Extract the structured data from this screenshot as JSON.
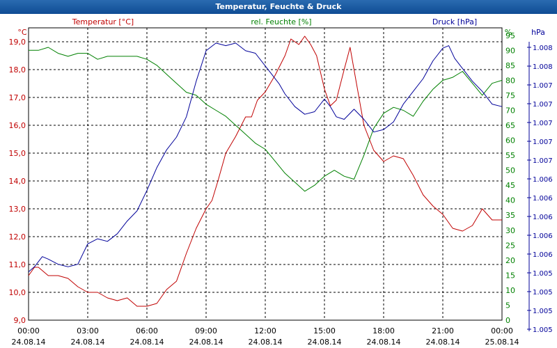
{
  "window": {
    "title": "Temperatur, Feuchte & Druck"
  },
  "colors": {
    "temperature": "#c00000",
    "humidity": "#008000",
    "pressure": "#000099",
    "grid": "#000000",
    "background": "#ffffff"
  },
  "chart_data": {
    "type": "line",
    "title": "Temperatur, Feuchte & Druck",
    "grid": true,
    "x_ticks": [
      {
        "time": "00:00",
        "date": "24.08.14"
      },
      {
        "time": "03:00",
        "date": "24.08.14"
      },
      {
        "time": "06:00",
        "date": "24.08.14"
      },
      {
        "time": "09:00",
        "date": "24.08.14"
      },
      {
        "time": "12:00",
        "date": "24.08.14"
      },
      {
        "time": "15:00",
        "date": "24.08.14"
      },
      {
        "time": "18:00",
        "date": "24.08.14"
      },
      {
        "time": "21:00",
        "date": "24.08.14"
      },
      {
        "time": "00:00",
        "date": "25.08.14"
      }
    ],
    "axes": {
      "temperature": {
        "label": "Temperatur [°C]",
        "unit": "°C",
        "range": [
          9,
          19.5
        ],
        "ticks": [
          "9,0",
          "10,0",
          "11,0",
          "12,0",
          "13,0",
          "14,0",
          "15,0",
          "16,0",
          "17,0",
          "18,0",
          "19,0"
        ]
      },
      "humidity": {
        "label": "rel. Feuchte [%]",
        "unit": "%",
        "range": [
          0,
          97.5
        ],
        "ticks": [
          "0",
          "5",
          "10",
          "15",
          "20",
          "25",
          "30",
          "35",
          "40",
          "45",
          "50",
          "55",
          "60",
          "65",
          "70",
          "75",
          "80",
          "85",
          "90",
          "95"
        ]
      },
      "pressure": {
        "label": "Druck [hPa]",
        "unit": "hPa",
        "ticks": [
          "1.005",
          "1.005",
          "1.005",
          "1.005",
          "1.006",
          "1.006",
          "1.006",
          "1.006",
          "1.006",
          "1.007",
          "1.007",
          "1.007",
          "1.007",
          "1.007",
          "1.008",
          "1.008"
        ]
      }
    },
    "series": [
      {
        "name": "Temperatur [°C]",
        "axis": "temperature",
        "x_hours": [
          0,
          0.3,
          0.5,
          1,
          1.5,
          2,
          2.5,
          3,
          3.5,
          4,
          4.5,
          5,
          5.5,
          6,
          6.5,
          7,
          7.5,
          8,
          8.5,
          9,
          9.3,
          9.6,
          10,
          10.5,
          11,
          11.3,
          11.6,
          12,
          12.5,
          13,
          13.3,
          13.7,
          14,
          14.3,
          14.6,
          15,
          15.3,
          15.6,
          16,
          16.3,
          16.6,
          17,
          17.5,
          18,
          18.5,
          19,
          19.5,
          20,
          20.5,
          21,
          21.5,
          22,
          22.5,
          23,
          23.5,
          24
        ],
        "values": [
          10.6,
          10.9,
          10.9,
          10.6,
          10.6,
          10.5,
          10.2,
          10.0,
          10.0,
          9.8,
          9.7,
          9.8,
          9.5,
          9.5,
          9.6,
          10.1,
          10.4,
          11.4,
          12.3,
          13.0,
          13.3,
          14.0,
          15.0,
          15.6,
          16.3,
          16.3,
          16.9,
          17.2,
          17.8,
          18.5,
          19.1,
          18.9,
          19.2,
          18.9,
          18.5,
          17.3,
          16.7,
          16.9,
          18.0,
          18.8,
          17.6,
          16.0,
          15.1,
          14.7,
          14.9,
          14.8,
          14.2,
          13.5,
          13.1,
          12.8,
          12.3,
          12.2,
          12.4,
          13.0,
          12.6,
          12.6
        ]
      },
      {
        "name": "rel. Feuchte [%]",
        "axis": "humidity",
        "x_hours": [
          0,
          0.5,
          1,
          1.5,
          2,
          2.5,
          3,
          3.5,
          4,
          4.5,
          5,
          5.5,
          6,
          6.5,
          7,
          7.5,
          8,
          8.5,
          9,
          9.5,
          10,
          10.5,
          11,
          11.5,
          12,
          12.5,
          13,
          13.5,
          14,
          14.5,
          15,
          15.5,
          16,
          16.5,
          17,
          17.5,
          18,
          18.5,
          19,
          19.5,
          20,
          20.5,
          21,
          21.5,
          22,
          22.5,
          23,
          23.5,
          24
        ],
        "values": [
          90,
          90,
          91,
          89,
          88,
          89,
          89,
          87,
          88,
          88,
          88,
          88,
          87,
          85,
          82,
          79,
          76,
          75,
          72,
          70,
          68,
          65,
          62,
          59,
          57,
          53,
          49,
          46,
          43,
          45,
          48,
          50,
          48,
          47,
          55,
          64,
          69,
          71,
          70,
          68,
          73,
          77,
          80,
          81,
          83,
          79,
          75,
          79,
          80
        ]
      },
      {
        "name": "Druck [hPa]",
        "axis": "pressure",
        "x_hours": [
          0,
          0.3,
          0.7,
          1,
          1.5,
          2,
          2.5,
          3,
          3.5,
          4,
          4.5,
          5,
          5.5,
          6,
          6.5,
          7,
          7.5,
          8,
          8.5,
          9,
          9.5,
          10,
          10.5,
          11,
          11.5,
          12,
          12.3,
          12.7,
          13,
          13.5,
          14,
          14.5,
          15,
          15.3,
          15.6,
          16,
          16.5,
          17,
          17.5,
          18,
          18.5,
          19,
          19.5,
          20,
          20.5,
          21,
          21.3,
          21.6,
          22,
          22.5,
          23,
          23.5,
          24
        ],
        "values": [
          1.00449,
          1.00451,
          1.00455,
          1.00454,
          1.00452,
          1.00451,
          1.00452,
          1.0046,
          1.00462,
          1.00461,
          1.00464,
          1.00469,
          1.00473,
          1.00481,
          1.0049,
          1.00497,
          1.00502,
          1.0051,
          1.00524,
          1.00536,
          1.00539,
          1.00538,
          1.00539,
          1.00536,
          1.00535,
          1.0053,
          1.00527,
          1.00523,
          1.00519,
          1.00514,
          1.00511,
          1.00512,
          1.00517,
          1.00514,
          1.0051,
          1.00509,
          1.00513,
          1.00509,
          1.00504,
          1.00505,
          1.00508,
          1.00515,
          1.0052,
          1.00525,
          1.00532,
          1.00537,
          1.00538,
          1.00533,
          1.00529,
          1.00524,
          1.0052,
          1.00515,
          1.00514
        ]
      }
    ]
  }
}
